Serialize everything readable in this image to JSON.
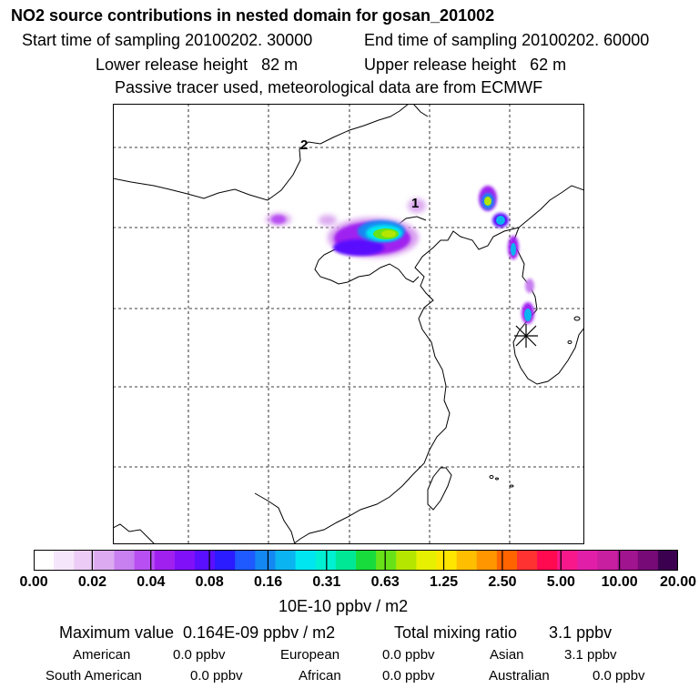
{
  "header": {
    "title": "NO2 source contributions in nested domain for gosan_201002",
    "start": "Start time of sampling 20100202. 30000",
    "end": "End time of sampling 20100202. 60000",
    "lower": "Lower release height   82 m",
    "upper": "Upper release height   62 m",
    "note": "Passive tracer used, meteorological data are from ECMWF"
  },
  "map": {
    "labels": [
      "2",
      "1"
    ]
  },
  "colorbar": {
    "colors": [
      "#ffffff",
      "#f6e6fb",
      "#ecccf6",
      "#dcaaf0",
      "#c87ff0",
      "#b84ff2",
      "#a020f0",
      "#8010f8",
      "#5a0ffe",
      "#2a1cff",
      "#1e5aff",
      "#1488f2",
      "#0ab4f0",
      "#00e6f0",
      "#00f0d2",
      "#00e896",
      "#18dc3c",
      "#68e218",
      "#b4e600",
      "#e6f000",
      "#ffe600",
      "#ffbe00",
      "#ff9600",
      "#ff6400",
      "#ff3232",
      "#ff0a50",
      "#f8188c",
      "#e01ea8",
      "#c81ea0",
      "#a01490",
      "#780a78",
      "#3c0050"
    ],
    "tick_labels": [
      "0.00",
      "0.02",
      "0.04",
      "0.08",
      "0.16",
      "0.31",
      "0.63",
      "1.25",
      "2.50",
      "5.00",
      "10.00",
      "20.00"
    ],
    "unit": "10E-10 ppbv / m2"
  },
  "summary": {
    "maximum": "Maximum value  0.164E-09 ppbv / m2",
    "total": "Total mixing ratio       3.1 ppbv",
    "regions": [
      {
        "name": "American",
        "value": "0.0 ppbv"
      },
      {
        "name": "European",
        "value": "0.0 ppbv"
      },
      {
        "name": "Asian",
        "value": "3.1 ppbv"
      },
      {
        "name": "South American",
        "value": "0.0 ppbv"
      },
      {
        "name": "African",
        "value": "0.0 ppbv"
      },
      {
        "name": "Australian",
        "value": "0.0 ppbv"
      }
    ]
  }
}
